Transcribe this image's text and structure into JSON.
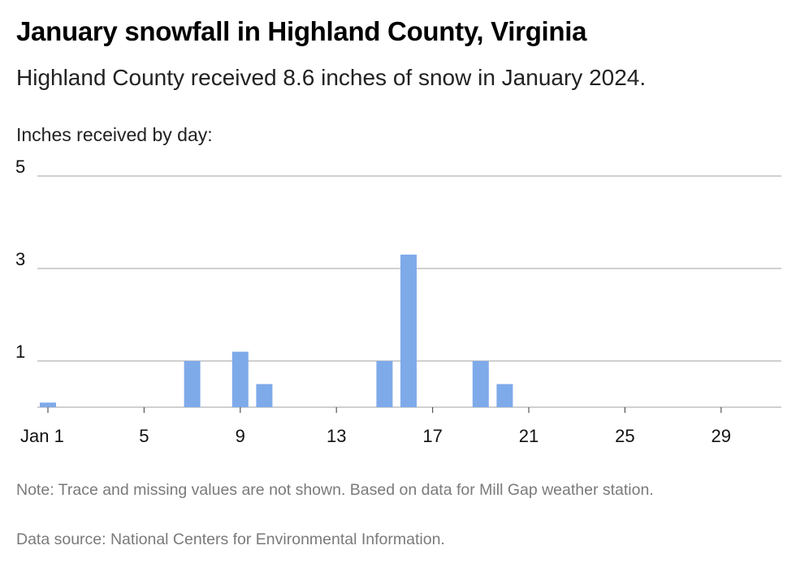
{
  "chart_data": {
    "type": "bar",
    "title": "January snowfall in Highland County, Virginia",
    "subtitle": "Highland County received 8.6 inches of snow in January 2024.",
    "ylabel": "Inches received by day:",
    "xlabel": "",
    "ylim": [
      0,
      5
    ],
    "yticks": [
      1,
      3,
      5
    ],
    "grid": true,
    "legend": "none",
    "bar_color": "#7eaaea",
    "xlim": [
      1,
      31
    ],
    "xticks": [
      1,
      5,
      9,
      13,
      17,
      21,
      25,
      29
    ],
    "xtick_labels": [
      "Jan 1",
      "5",
      "9",
      "13",
      "17",
      "21",
      "25",
      "29"
    ],
    "days": [
      1,
      7,
      9,
      10,
      15,
      16,
      19,
      20
    ],
    "values": [
      0.1,
      1.0,
      1.2,
      0.5,
      1.0,
      3.3,
      1.0,
      0.5
    ]
  },
  "note": "Note: Trace and missing values are not shown. Based on data for Mill Gap weather station.",
  "source": "Data source: National Centers for Environmental Information."
}
